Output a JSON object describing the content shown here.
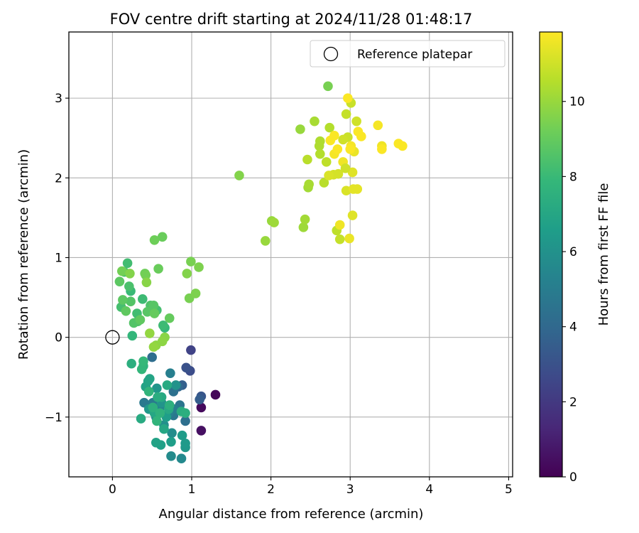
{
  "chart_data": {
    "type": "scatter",
    "title": "FOV centre drift starting at 2024/11/28 01:48:17",
    "xlabel": "Angular distance from reference (arcmin)",
    "ylabel": "Rotation from reference (arcmin)",
    "xlim": [
      -0.55,
      5.05
    ],
    "ylim": [
      -1.75,
      3.83
    ],
    "xticks": [
      0,
      1,
      2,
      3,
      4,
      5
    ],
    "xtick_labels": [
      "0",
      "1",
      "2",
      "3",
      "4",
      "5"
    ],
    "yticks": [
      -1,
      0,
      1,
      2,
      3
    ],
    "ytick_labels": [
      "−1",
      "0",
      "1",
      "2",
      "3"
    ],
    "grid": true,
    "legend": {
      "position": "top-right",
      "entries": [
        {
          "label": "Reference platepar",
          "marker": "open-circle"
        }
      ]
    },
    "reference_point": {
      "x": 0,
      "y": 0
    },
    "colorbar": {
      "label": "Hours from first FF file",
      "range": [
        0,
        11.85
      ],
      "ticks": [
        0,
        2,
        4,
        6,
        8,
        10
      ],
      "tick_labels": [
        "0",
        "2",
        "4",
        "6",
        "8",
        "10"
      ],
      "colormap": "viridis",
      "colors": [
        "#440154",
        "#482878",
        "#3e4989",
        "#31688e",
        "#26828e",
        "#1f9e89",
        "#35b779",
        "#6ece58",
        "#b5de2b",
        "#fde725"
      ]
    },
    "series": [
      {
        "points": [
          {
            "x": 1.3,
            "y": -0.72,
            "c": 0.2
          },
          {
            "x": 1.12,
            "y": -0.88,
            "c": 0.3
          },
          {
            "x": 1.12,
            "y": -1.17,
            "c": 0.5
          },
          {
            "x": 0.99,
            "y": -0.16,
            "c": 2.4
          },
          {
            "x": 0.98,
            "y": -0.42,
            "c": 2.8
          },
          {
            "x": 0.93,
            "y": -0.38,
            "c": 3.0
          },
          {
            "x": 1.12,
            "y": -0.74,
            "c": 3.2
          },
          {
            "x": 1.1,
            "y": -0.78,
            "c": 3.5
          },
          {
            "x": 0.88,
            "y": -0.6,
            "c": 3.6
          },
          {
            "x": 0.83,
            "y": -0.62,
            "c": 4.0
          },
          {
            "x": 0.5,
            "y": -0.25,
            "c": 4.2
          },
          {
            "x": 0.92,
            "y": -1.05,
            "c": 4.3
          },
          {
            "x": 0.77,
            "y": -0.68,
            "c": 4.4
          },
          {
            "x": 0.85,
            "y": -0.85,
            "c": 4.6
          },
          {
            "x": 0.77,
            "y": -0.98,
            "c": 4.7
          },
          {
            "x": 0.4,
            "y": -0.82,
            "c": 4.8
          },
          {
            "x": 0.51,
            "y": -0.82,
            "c": 4.9
          },
          {
            "x": 0.78,
            "y": -0.9,
            "c": 5.0
          },
          {
            "x": 0.73,
            "y": -0.45,
            "c": 5.1
          },
          {
            "x": 0.71,
            "y": -0.95,
            "c": 5.2
          },
          {
            "x": 0.6,
            "y": -0.88,
            "c": 5.3
          },
          {
            "x": 0.55,
            "y": -1.0,
            "c": 5.4
          },
          {
            "x": 0.87,
            "y": -1.52,
            "c": 5.6
          },
          {
            "x": 0.74,
            "y": -1.49,
            "c": 5.7
          },
          {
            "x": 0.75,
            "y": -1.2,
            "c": 5.8
          },
          {
            "x": 0.65,
            "y": -1.1,
            "c": 5.9
          },
          {
            "x": 0.8,
            "y": -0.6,
            "c": 6.0
          },
          {
            "x": 0.62,
            "y": -0.82,
            "c": 6.1
          },
          {
            "x": 0.56,
            "y": -0.64,
            "c": 6.2
          },
          {
            "x": 0.46,
            "y": -0.9,
            "c": 6.3
          },
          {
            "x": 0.92,
            "y": -1.38,
            "c": 6.3
          },
          {
            "x": 0.92,
            "y": -1.33,
            "c": 6.4
          },
          {
            "x": 0.88,
            "y": -1.23,
            "c": 6.5
          },
          {
            "x": 0.68,
            "y": -1.0,
            "c": 6.6
          },
          {
            "x": 0.74,
            "y": -1.31,
            "c": 6.6
          },
          {
            "x": 0.61,
            "y": -1.35,
            "c": 6.7
          },
          {
            "x": 0.55,
            "y": -1.32,
            "c": 6.8
          },
          {
            "x": 0.42,
            "y": -0.62,
            "c": 6.8
          },
          {
            "x": 0.45,
            "y": -0.55,
            "c": 6.9
          },
          {
            "x": 0.47,
            "y": -0.52,
            "c": 6.9
          },
          {
            "x": 0.65,
            "y": -1.15,
            "c": 7.0
          },
          {
            "x": 0.53,
            "y": -0.95,
            "c": 7.0
          },
          {
            "x": 0.62,
            "y": -0.75,
            "c": 7.1
          },
          {
            "x": 0.71,
            "y": -0.9,
            "c": 7.1
          },
          {
            "x": 0.36,
            "y": -1.02,
            "c": 7.2
          },
          {
            "x": 0.69,
            "y": -0.6,
            "c": 7.2
          },
          {
            "x": 0.87,
            "y": -0.93,
            "c": 7.3
          },
          {
            "x": 0.57,
            "y": -0.75,
            "c": 7.3
          },
          {
            "x": 0.24,
            "y": -0.33,
            "c": 7.4
          },
          {
            "x": 0.92,
            "y": -0.95,
            "c": 7.4
          },
          {
            "x": 0.72,
            "y": -0.85,
            "c": 7.5
          },
          {
            "x": 0.51,
            "y": -0.88,
            "c": 7.5
          },
          {
            "x": 0.6,
            "y": -0.95,
            "c": 7.6
          },
          {
            "x": 0.39,
            "y": -0.36,
            "c": 7.6
          },
          {
            "x": 0.56,
            "y": -1.05,
            "c": 7.7
          },
          {
            "x": 0.46,
            "y": -0.68,
            "c": 7.7
          },
          {
            "x": 0.37,
            "y": -0.4,
            "c": 7.8
          },
          {
            "x": 0.25,
            "y": 0.02,
            "c": 7.8
          },
          {
            "x": 0.39,
            "y": -0.3,
            "c": 7.9
          },
          {
            "x": 0.66,
            "y": 0.12,
            "c": 7.9
          },
          {
            "x": 0.23,
            "y": 0.58,
            "c": 8.0
          },
          {
            "x": 0.38,
            "y": 0.48,
            "c": 8.1
          },
          {
            "x": 0.64,
            "y": 0.15,
            "c": 8.1
          },
          {
            "x": 0.19,
            "y": 0.93,
            "c": 8.2
          },
          {
            "x": 0.31,
            "y": 0.3,
            "c": 8.2
          },
          {
            "x": 0.11,
            "y": 0.38,
            "c": 8.3
          },
          {
            "x": 0.56,
            "y": 0.34,
            "c": 8.3
          },
          {
            "x": 0.21,
            "y": 0.64,
            "c": 8.4
          },
          {
            "x": 0.15,
            "y": 0.82,
            "c": 8.4
          },
          {
            "x": 0.32,
            "y": 0.2,
            "c": 8.5
          },
          {
            "x": 0.48,
            "y": 0.4,
            "c": 8.5
          },
          {
            "x": 0.23,
            "y": 0.45,
            "c": 8.6
          },
          {
            "x": 0.27,
            "y": 0.18,
            "c": 8.6
          },
          {
            "x": 0.52,
            "y": 0.4,
            "c": 8.7
          },
          {
            "x": 0.44,
            "y": 0.32,
            "c": 8.7
          },
          {
            "x": 0.13,
            "y": 0.47,
            "c": 8.8
          },
          {
            "x": 0.09,
            "y": 0.7,
            "c": 8.8
          },
          {
            "x": 0.35,
            "y": 0.22,
            "c": 8.9
          },
          {
            "x": 0.17,
            "y": 0.33,
            "c": 8.9
          },
          {
            "x": 0.53,
            "y": 0.3,
            "c": 9.0
          },
          {
            "x": 0.72,
            "y": 0.24,
            "c": 9.0
          },
          {
            "x": 0.58,
            "y": 0.86,
            "c": 9.1
          },
          {
            "x": 0.63,
            "y": 1.26,
            "c": 9.1
          },
          {
            "x": 0.53,
            "y": 1.22,
            "c": 9.2
          },
          {
            "x": 0.41,
            "y": 0.8,
            "c": 9.2
          },
          {
            "x": 0.42,
            "y": 0.78,
            "c": 9.3
          },
          {
            "x": 0.12,
            "y": 0.83,
            "c": 9.3
          },
          {
            "x": 0.97,
            "y": 0.49,
            "c": 9.4
          },
          {
            "x": 0.99,
            "y": 0.95,
            "c": 9.4
          },
          {
            "x": 1.09,
            "y": 0.88,
            "c": 9.5
          },
          {
            "x": 1.05,
            "y": 0.55,
            "c": 9.5
          },
          {
            "x": 0.94,
            "y": 0.8,
            "c": 9.6
          },
          {
            "x": 0.22,
            "y": 0.8,
            "c": 9.6
          },
          {
            "x": 0.43,
            "y": 0.69,
            "c": 9.7
          },
          {
            "x": 0.66,
            "y": 0.0,
            "c": 9.7
          },
          {
            "x": 0.63,
            "y": -0.05,
            "c": 9.8
          },
          {
            "x": 0.55,
            "y": -0.1,
            "c": 9.8
          },
          {
            "x": 0.52,
            "y": -0.12,
            "c": 9.9
          },
          {
            "x": 0.47,
            "y": 0.05,
            "c": 9.9
          },
          {
            "x": 1.93,
            "y": 1.21,
            "c": 10.0
          },
          {
            "x": 2.01,
            "y": 1.46,
            "c": 10.0
          },
          {
            "x": 2.04,
            "y": 1.44,
            "c": 10.1
          },
          {
            "x": 1.6,
            "y": 2.03,
            "c": 9.6
          },
          {
            "x": 2.41,
            "y": 1.38,
            "c": 10.1
          },
          {
            "x": 2.43,
            "y": 1.48,
            "c": 10.2
          },
          {
            "x": 2.47,
            "y": 1.88,
            "c": 10.2
          },
          {
            "x": 2.48,
            "y": 1.92,
            "c": 10.3
          },
          {
            "x": 2.37,
            "y": 2.61,
            "c": 10.0
          },
          {
            "x": 2.55,
            "y": 2.71,
            "c": 10.3
          },
          {
            "x": 2.61,
            "y": 2.4,
            "c": 10.4
          },
          {
            "x": 2.62,
            "y": 2.46,
            "c": 10.4
          },
          {
            "x": 2.62,
            "y": 2.3,
            "c": 10.5
          },
          {
            "x": 2.72,
            "y": 3.15,
            "c": 9.4
          },
          {
            "x": 2.74,
            "y": 2.63,
            "c": 10.5
          },
          {
            "x": 2.67,
            "y": 1.94,
            "c": 10.6
          },
          {
            "x": 2.46,
            "y": 2.23,
            "c": 10.6
          },
          {
            "x": 2.7,
            "y": 2.2,
            "c": 10.7
          },
          {
            "x": 2.83,
            "y": 1.34,
            "c": 10.7
          },
          {
            "x": 2.87,
            "y": 1.23,
            "c": 10.8
          },
          {
            "x": 2.95,
            "y": 2.8,
            "c": 10.8
          },
          {
            "x": 2.97,
            "y": 2.51,
            "c": 10.9
          },
          {
            "x": 3.01,
            "y": 2.94,
            "c": 10.9
          },
          {
            "x": 3.08,
            "y": 2.71,
            "c": 11.0
          },
          {
            "x": 2.91,
            "y": 2.48,
            "c": 11.0
          },
          {
            "x": 2.79,
            "y": 2.04,
            "c": 11.1
          },
          {
            "x": 2.85,
            "y": 2.05,
            "c": 11.1
          },
          {
            "x": 2.73,
            "y": 2.03,
            "c": 11.2
          },
          {
            "x": 2.95,
            "y": 1.84,
            "c": 11.2
          },
          {
            "x": 3.03,
            "y": 2.07,
            "c": 11.3
          },
          {
            "x": 3.03,
            "y": 1.53,
            "c": 11.3
          },
          {
            "x": 3.09,
            "y": 1.86,
            "c": 11.4
          },
          {
            "x": 3.04,
            "y": 1.86,
            "c": 11.4
          },
          {
            "x": 3.05,
            "y": 2.33,
            "c": 11.5
          },
          {
            "x": 2.99,
            "y": 1.24,
            "c": 11.5
          },
          {
            "x": 2.87,
            "y": 1.41,
            "c": 11.6
          },
          {
            "x": 2.91,
            "y": 2.2,
            "c": 11.6
          },
          {
            "x": 2.94,
            "y": 2.12,
            "c": 11.0
          },
          {
            "x": 3.01,
            "y": 2.4,
            "c": 11.7
          },
          {
            "x": 2.8,
            "y": 2.3,
            "c": 11.7
          },
          {
            "x": 2.84,
            "y": 2.36,
            "c": 11.8
          },
          {
            "x": 2.75,
            "y": 2.47,
            "c": 11.8
          },
          {
            "x": 2.8,
            "y": 2.53,
            "c": 11.8
          },
          {
            "x": 2.97,
            "y": 3.0,
            "c": 11.8
          },
          {
            "x": 3.1,
            "y": 2.58,
            "c": 11.8
          },
          {
            "x": 3.14,
            "y": 2.52,
            "c": 11.8
          },
          {
            "x": 3.35,
            "y": 2.66,
            "c": 11.7
          },
          {
            "x": 3.4,
            "y": 2.4,
            "c": 11.6
          },
          {
            "x": 3.4,
            "y": 2.36,
            "c": 11.8
          },
          {
            "x": 3.61,
            "y": 2.43,
            "c": 11.8
          },
          {
            "x": 3.66,
            "y": 2.4,
            "c": 11.8
          },
          {
            "x": 3.0,
            "y": 2.36,
            "c": 11.8
          }
        ]
      }
    ]
  }
}
